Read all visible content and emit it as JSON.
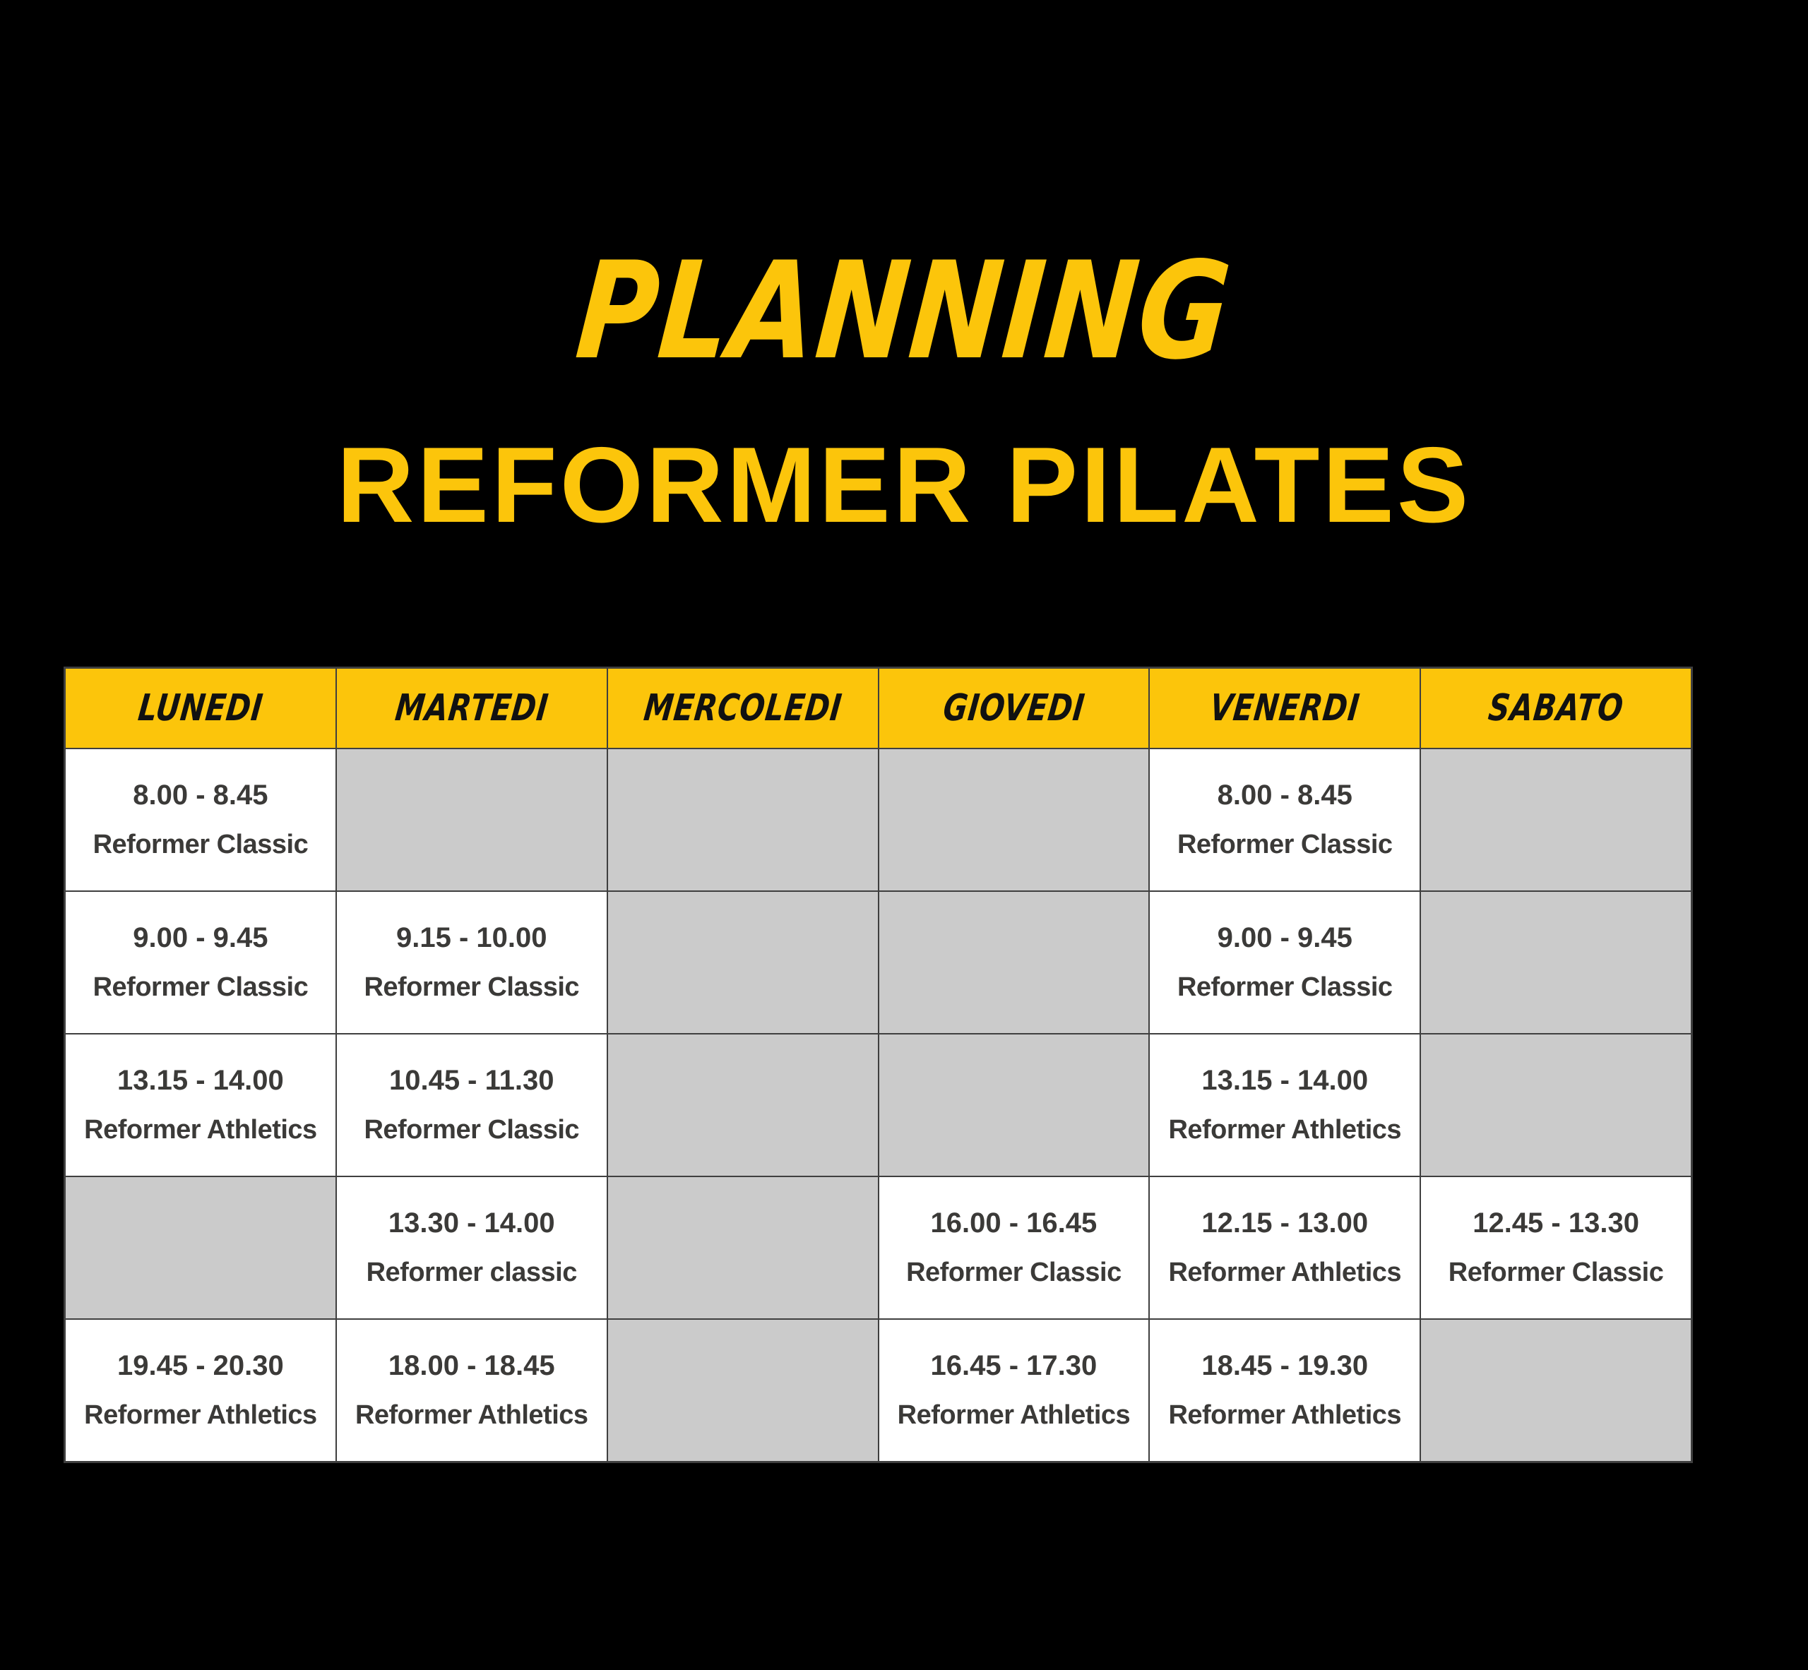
{
  "page": {
    "title_script": "PLANNING",
    "title_main": "REFORMER PILATES"
  },
  "colors": {
    "background": "#000000",
    "accent_yellow": "#FCC50B",
    "cell_white": "#FFFFFF",
    "cell_gray": "#CBCBCB",
    "cell_text": "#3B3A38",
    "grid_line": "#3F3F3F",
    "header_text": "#111111"
  },
  "schedule": {
    "days": [
      "LUNEDI",
      "MARTEDI",
      "MERCOLEDI",
      "GIOVEDI",
      "VENERDI",
      "SABATO"
    ],
    "rows": [
      [
        {
          "time": "8.00 - 8.45",
          "name": "Reformer Classic"
        },
        null,
        null,
        null,
        {
          "time": "8.00 - 8.45",
          "name": "Reformer Classic"
        },
        null
      ],
      [
        {
          "time": "9.00 - 9.45",
          "name": "Reformer Classic"
        },
        {
          "time": "9.15 - 10.00",
          "name": "Reformer Classic"
        },
        null,
        null,
        {
          "time": "9.00 - 9.45",
          "name": "Reformer Classic"
        },
        null
      ],
      [
        {
          "time": "13.15 - 14.00",
          "name": "Reformer Athletics"
        },
        {
          "time": "10.45 - 11.30",
          "name": "Reformer Classic"
        },
        null,
        null,
        {
          "time": "13.15 - 14.00",
          "name": "Reformer Athletics"
        },
        null
      ],
      [
        null,
        {
          "time": "13.30 - 14.00",
          "name": "Reformer classic"
        },
        null,
        {
          "time": "16.00 - 16.45",
          "name": "Reformer Classic"
        },
        {
          "time": "12.15 - 13.00",
          "name": "Reformer Athletics"
        },
        {
          "time": "12.45 - 13.30",
          "name": "Reformer Classic"
        }
      ],
      [
        {
          "time": "19.45 - 20.30",
          "name": "Reformer Athletics"
        },
        {
          "time": "18.00 - 18.45",
          "name": "Reformer Athletics"
        },
        null,
        {
          "time": "16.45 - 17.30",
          "name": "Reformer Athletics"
        },
        {
          "time": "18.45 - 19.30",
          "name": "Reformer Athletics"
        },
        null
      ]
    ]
  }
}
